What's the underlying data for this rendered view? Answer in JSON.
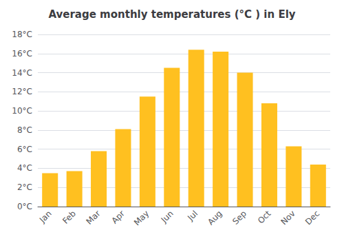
{
  "chart_data": {
    "type": "bar",
    "title": "Average monthly temperatures (°C ) in Ely",
    "categories": [
      "Jan",
      "Feb",
      "Mar",
      "Apr",
      "May",
      "Jun",
      "Jul",
      "Aug",
      "Sep",
      "Oct",
      "Nov",
      "Dec"
    ],
    "values": [
      3.5,
      3.7,
      5.8,
      8.1,
      11.5,
      14.5,
      16.4,
      16.2,
      14.0,
      10.8,
      6.3,
      4.4
    ],
    "color": "#FFC020",
    "ylim": [
      0,
      18
    ],
    "yticks": [
      {
        "value": 0,
        "label": "0°C"
      },
      {
        "value": 2,
        "label": "2°C"
      },
      {
        "value": 4,
        "label": "4°C"
      },
      {
        "value": 6,
        "label": "6°C"
      },
      {
        "value": 8,
        "label": "8°C"
      },
      {
        "value": 10,
        "label": "10°C"
      },
      {
        "value": 12,
        "label": "12°C"
      },
      {
        "value": 14,
        "label": "14°C"
      },
      {
        "value": 16,
        "label": "16°C"
      },
      {
        "value": 18,
        "label": "18°C"
      }
    ],
    "grid": true
  }
}
